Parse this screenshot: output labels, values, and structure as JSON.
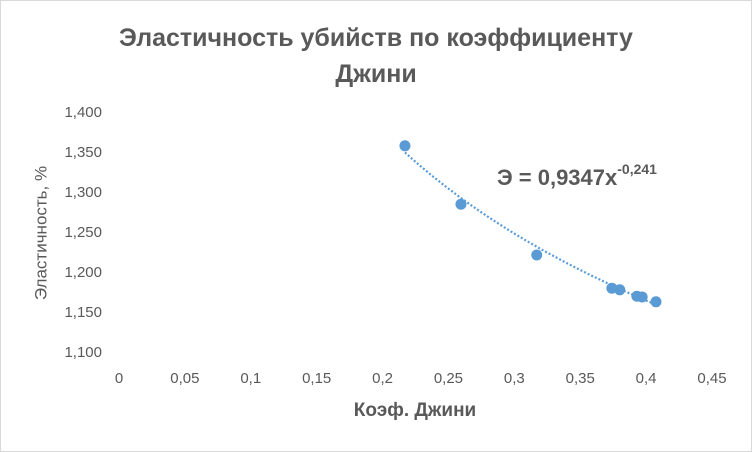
{
  "chart_data": {
    "type": "scatter",
    "title": "Эластичность убийств по коэффициенту Джини",
    "x_label": "Коэф. Джини",
    "y_label": "Эластичность, %",
    "series": [
      {
        "color": "#5b9bd5",
        "x": [
          0.217,
          0.2595,
          0.317,
          0.374,
          0.38,
          0.393,
          0.397,
          0.4075
        ],
        "values": [
          1.359,
          1.286,
          1.2225,
          1.181,
          1.179,
          1.171,
          1.17,
          1.164
        ]
      }
    ],
    "trendline": {
      "type": "power",
      "a": 0.9347,
      "b": -0.241,
      "color": "#5b9bd5",
      "label": "Э = 0,9347x",
      "exponent_label": "-0,241"
    },
    "xlim": [
      0,
      0.45
    ],
    "xticks": [
      0,
      {
        "value": 0.05,
        "label": "0,05"
      },
      {
        "value": 0.1,
        "label": "0,1"
      },
      {
        "value": 0.15,
        "label": "0,15"
      },
      {
        "value": 0.2,
        "label": "0,2"
      },
      {
        "value": 0.25,
        "label": "0,25"
      },
      {
        "value": 0.3,
        "label": "0,3"
      },
      {
        "value": 0.35,
        "label": "0,35"
      },
      {
        "value": 0.4,
        "label": "0,4"
      },
      {
        "value": 0.45,
        "label": "0,45"
      }
    ],
    "ylim": [
      1.1,
      1.4
    ],
    "yticks": [
      {
        "value": 1.1,
        "label": "1,100"
      },
      {
        "value": 1.15,
        "label": "1,150"
      },
      {
        "value": 1.2,
        "label": "1,200"
      },
      {
        "value": 1.25,
        "label": "1,250"
      },
      {
        "value": 1.3,
        "label": "1,300"
      },
      {
        "value": 1.35,
        "label": "1,350"
      },
      {
        "value": 1.4,
        "label": "1,400"
      }
    ]
  }
}
